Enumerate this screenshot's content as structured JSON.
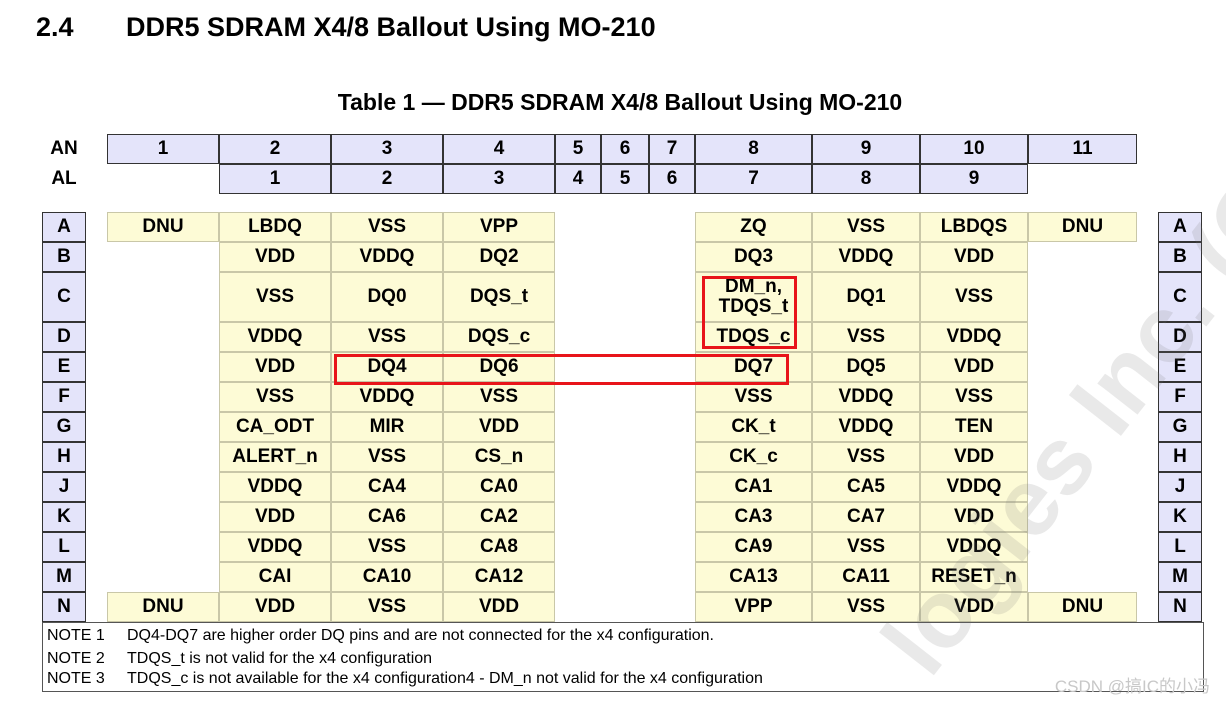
{
  "section": {
    "number": "2.4",
    "title": "DDR5 SDRAM X4/8 Ballout Using MO-210"
  },
  "table_title": "Table 1 — DDR5 SDRAM X4/8 Ballout Using MO-210",
  "header": {
    "an_label": "AN",
    "al_label": "AL",
    "an_cols": [
      "1",
      "2",
      "3",
      "4",
      "5",
      "6",
      "7",
      "8",
      "9",
      "10",
      "11"
    ],
    "al_cols": [
      "1",
      "2",
      "3",
      "4",
      "5",
      "6",
      "7",
      "8",
      "9"
    ]
  },
  "rows": [
    {
      "label": "A",
      "cells": [
        "DNU",
        "LBDQ",
        "VSS",
        "VPP",
        "",
        "",
        "",
        "ZQ",
        "VSS",
        "LBDQS",
        "DNU"
      ]
    },
    {
      "label": "B",
      "cells": [
        "",
        "VDD",
        "VDDQ",
        "DQ2",
        "",
        "",
        "",
        "DQ3",
        "VDDQ",
        "VDD",
        ""
      ]
    },
    {
      "label": "C",
      "cells": [
        "",
        "VSS",
        "DQ0",
        "DQS_t",
        "",
        "",
        "",
        "DM_n, TDQS_t",
        "DQ1",
        "VSS",
        ""
      ]
    },
    {
      "label": "D",
      "cells": [
        "",
        "VDDQ",
        "VSS",
        "DQS_c",
        "",
        "",
        "",
        "TDQS_c",
        "VSS",
        "VDDQ",
        ""
      ]
    },
    {
      "label": "E",
      "cells": [
        "",
        "VDD",
        "DQ4",
        "DQ6",
        "",
        "",
        "",
        "DQ7",
        "DQ5",
        "VDD",
        ""
      ]
    },
    {
      "label": "F",
      "cells": [
        "",
        "VSS",
        "VDDQ",
        "VSS",
        "",
        "",
        "",
        "VSS",
        "VDDQ",
        "VSS",
        ""
      ]
    },
    {
      "label": "G",
      "cells": [
        "",
        "CA_ODT",
        "MIR",
        "VDD",
        "",
        "",
        "",
        "CK_t",
        "VDDQ",
        "TEN",
        ""
      ]
    },
    {
      "label": "H",
      "cells": [
        "",
        "ALERT_n",
        "VSS",
        "CS_n",
        "",
        "",
        "",
        "CK_c",
        "VSS",
        "VDD",
        ""
      ]
    },
    {
      "label": "J",
      "cells": [
        "",
        "VDDQ",
        "CA4",
        "CA0",
        "",
        "",
        "",
        "CA1",
        "CA5",
        "VDDQ",
        ""
      ]
    },
    {
      "label": "K",
      "cells": [
        "",
        "VDD",
        "CA6",
        "CA2",
        "",
        "",
        "",
        "CA3",
        "CA7",
        "VDD",
        ""
      ]
    },
    {
      "label": "L",
      "cells": [
        "",
        "VDDQ",
        "VSS",
        "CA8",
        "",
        "",
        "",
        "CA9",
        "VSS",
        "VDDQ",
        ""
      ]
    },
    {
      "label": "M",
      "cells": [
        "",
        "CAI",
        "CA10",
        "CA12",
        "",
        "",
        "",
        "CA13",
        "CA11",
        "RESET_n",
        ""
      ]
    },
    {
      "label": "N",
      "cells": [
        "DNU",
        "VDD",
        "VSS",
        "VDD",
        "",
        "",
        "",
        "VPP",
        "VSS",
        "VDD",
        "DNU"
      ]
    }
  ],
  "notes": [
    {
      "label": "NOTE 1",
      "text": "DQ4-DQ7 are higher order DQ pins and are not connected for the x4 configuration."
    },
    {
      "label": "NOTE 2",
      "text": "TDQS_t is not valid for the x4 configuration"
    },
    {
      "label": "NOTE 3",
      "text": "TDQS_c is not available for the x4 configuration4 - DM_n not valid for the x4 configuration"
    }
  ],
  "watermark_text": "logies Inc. (CXM",
  "csdn_credit": "CSDN @搞IC的小冯",
  "colors": {
    "header_fill": "#e4e4fa",
    "pin_fill": "#fdfbd6",
    "highlight": "#e8141a"
  }
}
